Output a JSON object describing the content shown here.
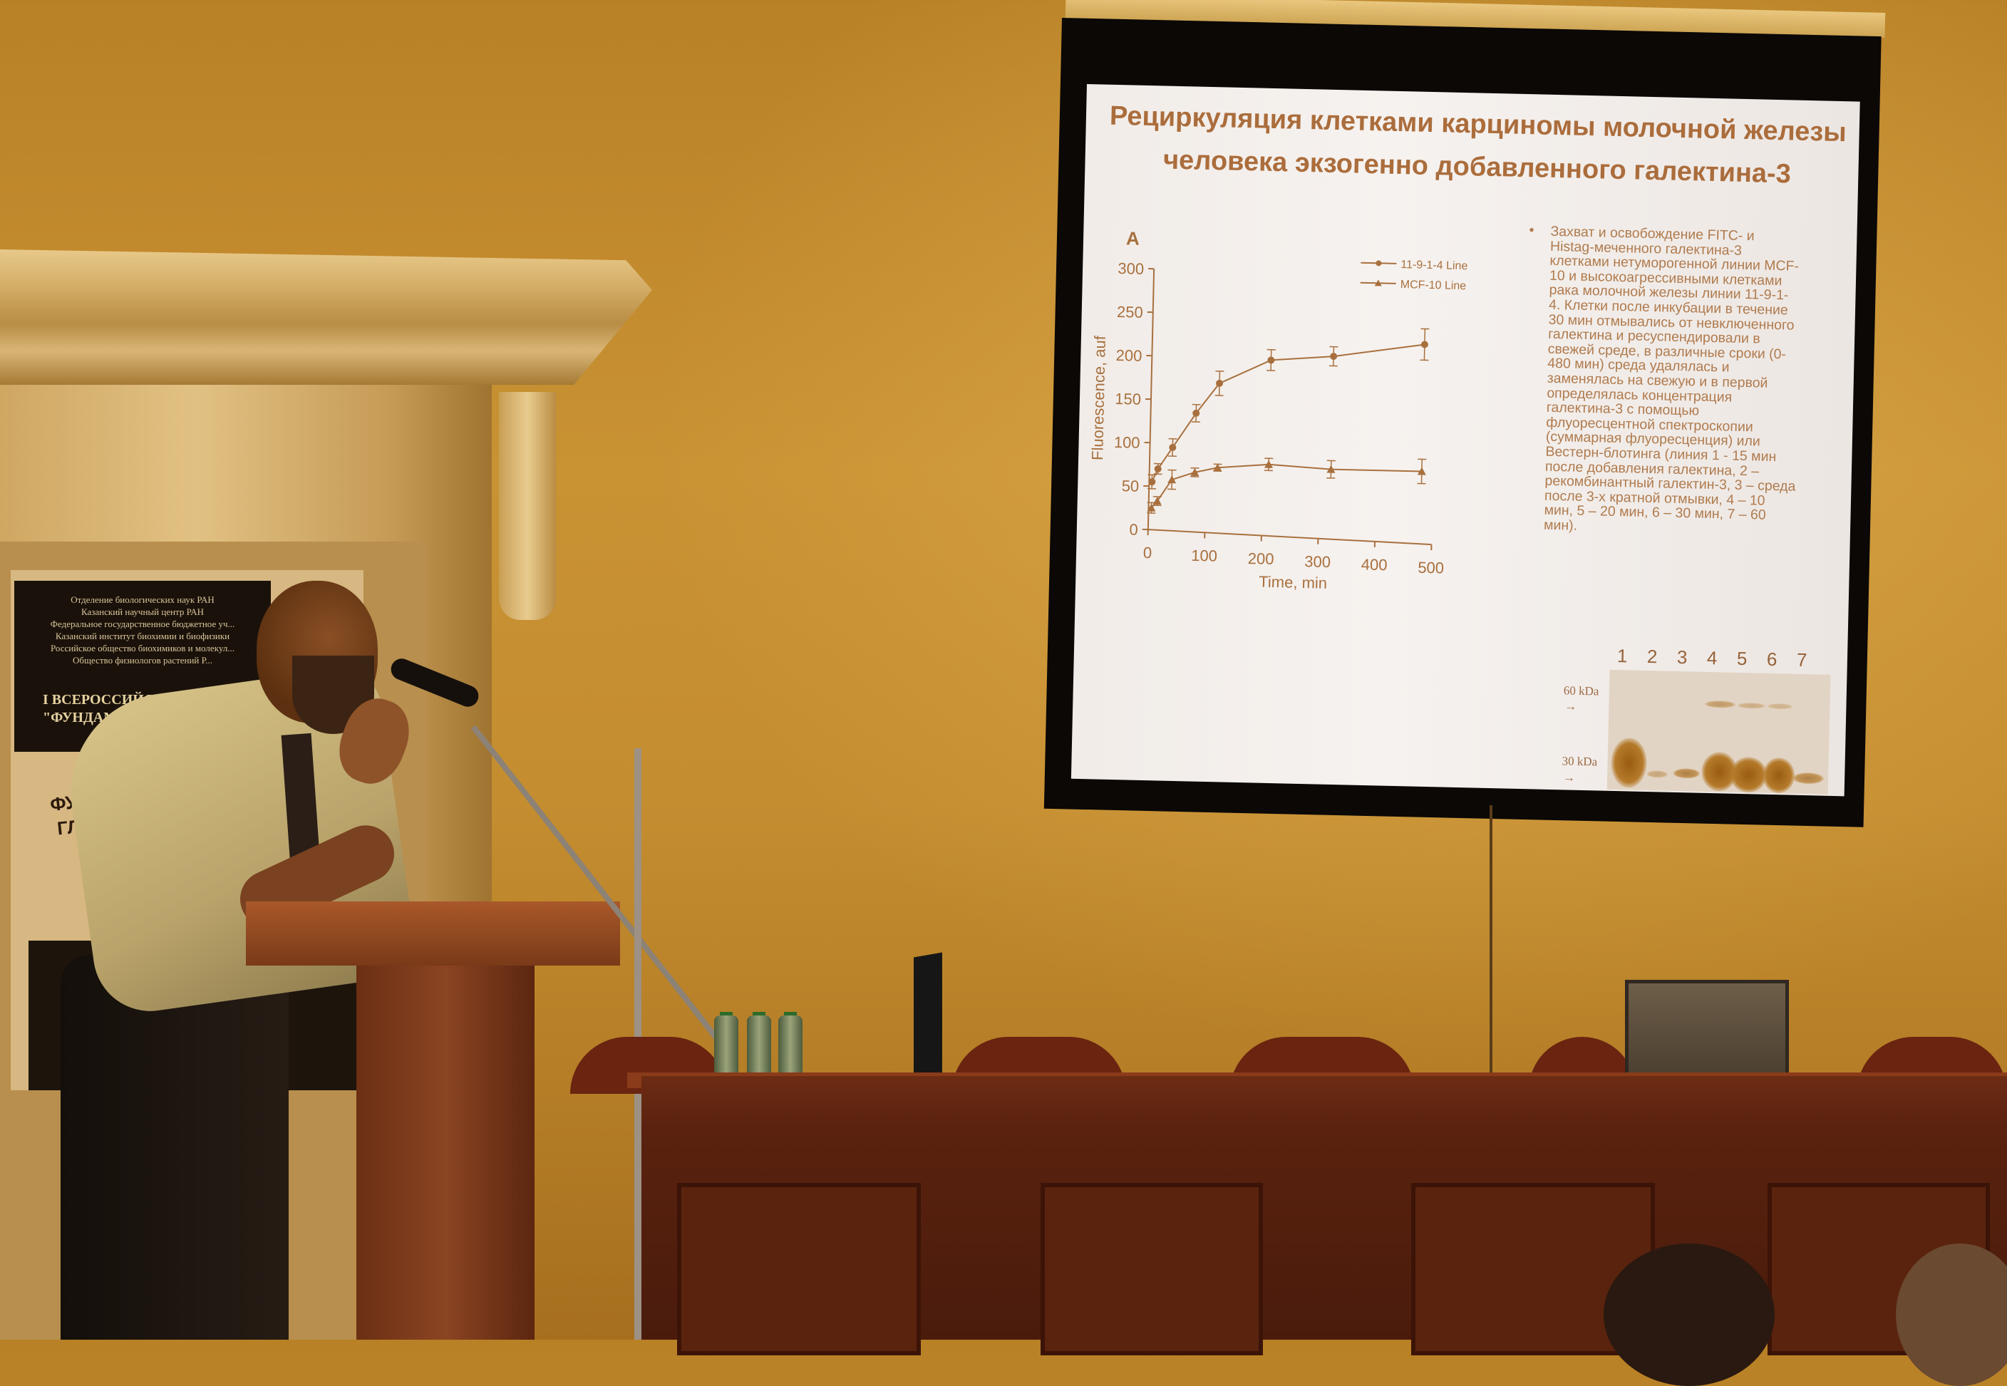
{
  "scene": {
    "poster": {
      "header_lines": [
        "Отделение биологических наук РАН",
        "Казанский научный центр РАН",
        "Федеральное государственное бюджетное уч...",
        "Казанский институт биохимии и биофизики",
        "Российское общество биохимиков и молекул...",
        "Общество физиологов растений Р..."
      ],
      "conference_line1": "I ВСЕРОССИЙСКАЯ КОН...",
      "conference_line2": "\"ФУНДАМЕНТАЛЬНАЯ ...",
      "theme_line1": "ФУНДАМЕН...",
      "theme_line2": "ГЛИКОБИ..."
    }
  },
  "slide": {
    "title_lines": [
      "Рециркуляция клетками карциномы молочной железы",
      "человека экзогенно добавленного галектина-3"
    ],
    "panel_label": "A",
    "bullet": "•",
    "paragraph_lines": [
      "Захват и освобождение FITC- и",
      "Histag-меченного галектина-3",
      "клетками нетуморогенной линии MCF-",
      "10 и высокоагрессивными клетками",
      "рака молочной железы линии 11-9-1-",
      "4. Клетки после инкубации в течение",
      "30 мин отмывались от невключенного",
      "галектина и ресуспендировали в",
      "свежей среде, в различные сроки (0-",
      "480 мин) среда удалялась и",
      "заменялась на свежую и в первой",
      "определялась концентрация",
      "галектина-3 с помощью",
      "флуоресцентной спектроскопии",
      "(суммарная флуоресценция) или",
      "Вестерн-блотинга (линия 1 - 15 мин",
      "после добавления галектина, 2 –",
      "рекомбинантный галектин-3, 3 – среда",
      "после 3-х кратной отмывки, 4 – 10",
      "мин, 5 – 20 мин, 6 – 30 мин, 7 – 60",
      "мин)."
    ],
    "blot": {
      "lane_labels": [
        "1",
        "2",
        "3",
        "4",
        "5",
        "6",
        "7"
      ],
      "marker_60": "60 kDa",
      "marker_30": "30 kDa"
    },
    "text_color": "#a8703e"
  },
  "chart_data": {
    "type": "line",
    "title": "",
    "xlabel": "Time, min",
    "ylabel": "Fluorescence, auf",
    "xlim": [
      0,
      500
    ],
    "ylim": [
      0,
      300
    ],
    "xticks": [
      0,
      100,
      200,
      300,
      400,
      500
    ],
    "yticks": [
      0,
      50,
      100,
      150,
      200,
      250,
      300
    ],
    "grid": false,
    "legend_position": "top-right",
    "series": [
      {
        "name": "11-9-1-4 Line",
        "marker": "circle",
        "x": [
          5,
          15,
          40,
          80,
          120,
          210,
          320,
          480
        ],
        "y": [
          55,
          70,
          95,
          135,
          170,
          198,
          204,
          220
        ],
        "err": [
          8,
          6,
          10,
          10,
          14,
          12,
          11,
          18
        ]
      },
      {
        "name": "MCF-10 Line",
        "marker": "triangle",
        "x": [
          5,
          15,
          40,
          80,
          120,
          210,
          320,
          480
        ],
        "y": [
          25,
          33,
          58,
          67,
          73,
          78,
          74,
          74
        ],
        "err": [
          6,
          5,
          11,
          5,
          4,
          7,
          10,
          14
        ]
      }
    ],
    "color": "#a8703e"
  }
}
